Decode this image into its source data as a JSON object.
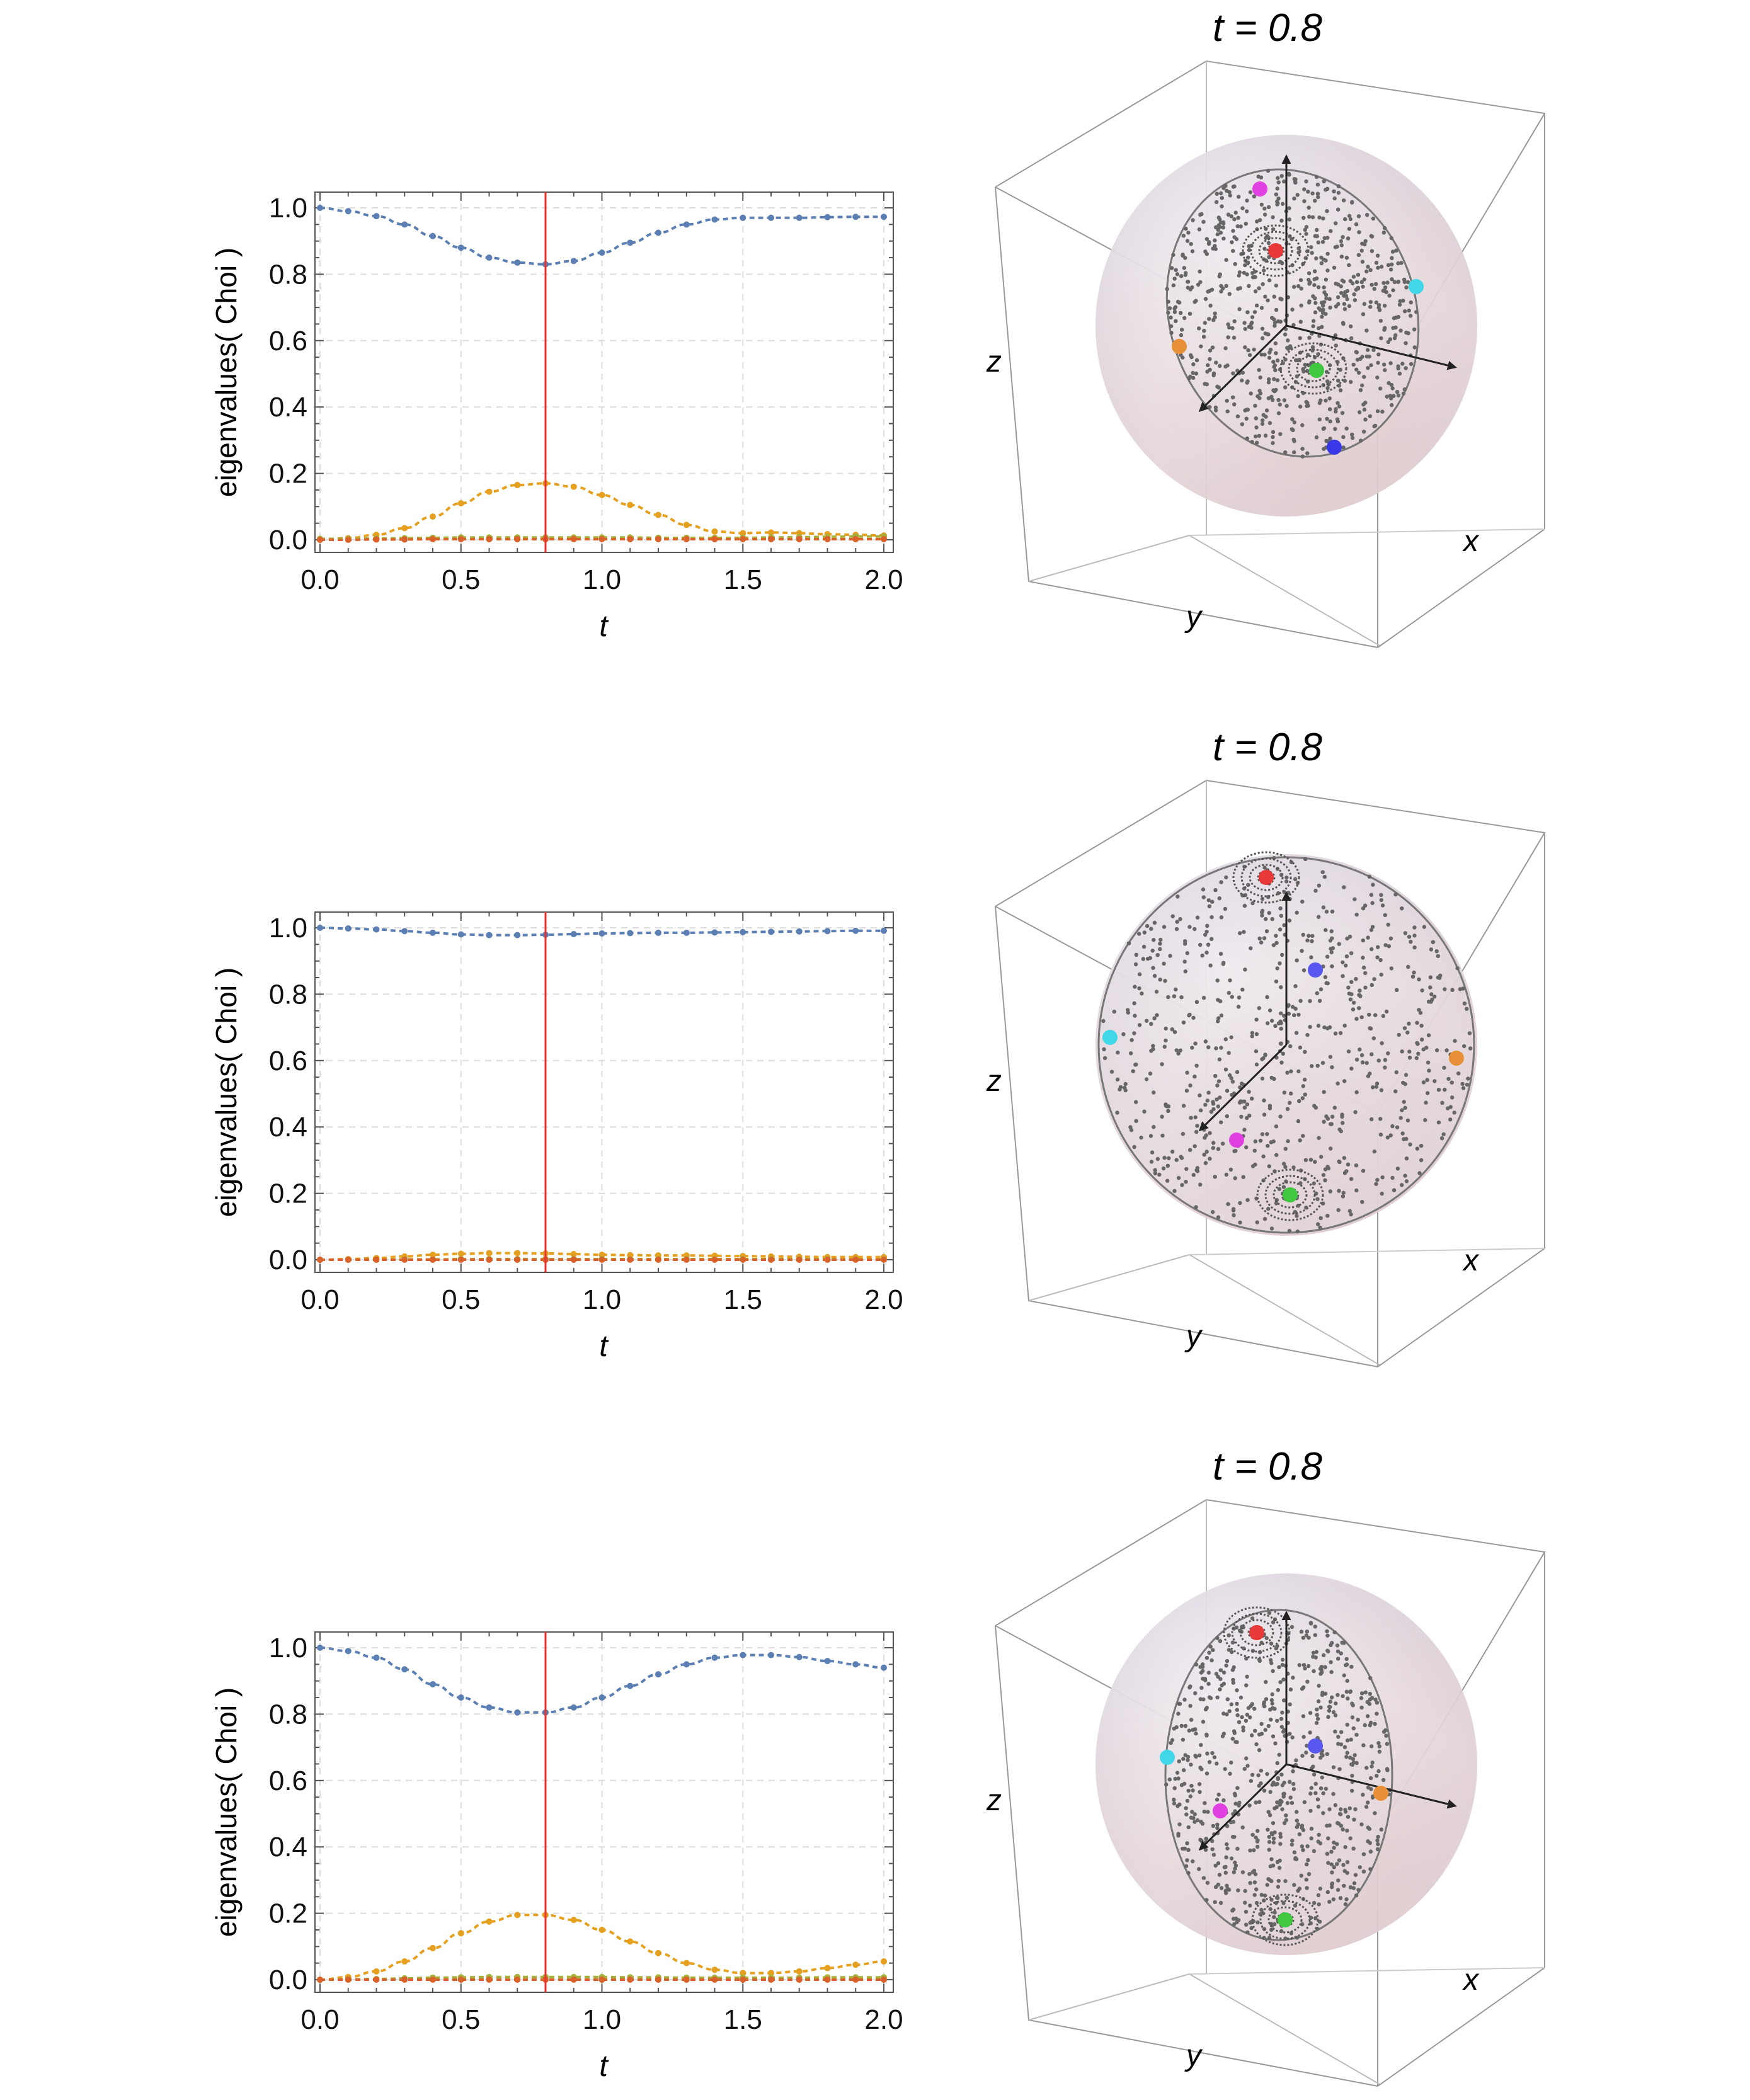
{
  "chart_data": [
    {
      "type": "line",
      "ylabel": "eigenvalues( Choi )",
      "xlabel": "t",
      "xlim": [
        0.0,
        2.0
      ],
      "ylim": [
        0.0,
        1.0
      ],
      "xticks": [
        "0.0",
        "0.5",
        "1.0",
        "1.5",
        "2.0"
      ],
      "yticks": [
        "0.0",
        "0.2",
        "0.4",
        "0.6",
        "0.8",
        "1.0"
      ],
      "marker_t": 0.8,
      "grid": true,
      "x": [
        0.0,
        0.1,
        0.2,
        0.3,
        0.4,
        0.5,
        0.6,
        0.7,
        0.8,
        0.9,
        1.0,
        1.1,
        1.2,
        1.3,
        1.4,
        1.5,
        1.6,
        1.7,
        1.8,
        1.9,
        2.0
      ],
      "series": [
        {
          "color": "#5b7fb3",
          "values": [
            1.0,
            0.99,
            0.975,
            0.95,
            0.915,
            0.88,
            0.85,
            0.835,
            0.83,
            0.84,
            0.865,
            0.895,
            0.925,
            0.95,
            0.965,
            0.97,
            0.97,
            0.97,
            0.972,
            0.973,
            0.973
          ]
        },
        {
          "color": "#e6a020",
          "values": [
            0.0,
            0.005,
            0.015,
            0.035,
            0.07,
            0.11,
            0.145,
            0.165,
            0.17,
            0.16,
            0.135,
            0.105,
            0.075,
            0.045,
            0.025,
            0.02,
            0.022,
            0.02,
            0.017,
            0.015,
            0.013
          ]
        },
        {
          "color": "#a8ae3a",
          "values": [
            0.003,
            0.003,
            0.004,
            0.005,
            0.006,
            0.007,
            0.007,
            0.007,
            0.007,
            0.007,
            0.007,
            0.007,
            0.006,
            0.006,
            0.006,
            0.006,
            0.007,
            0.008,
            0.009,
            0.01,
            0.01
          ]
        },
        {
          "color": "#d9622a",
          "values": [
            0.0,
            0.0,
            0.001,
            0.001,
            0.002,
            0.002,
            0.002,
            0.002,
            0.002,
            0.002,
            0.002,
            0.002,
            0.002,
            0.002,
            0.002,
            0.002,
            0.002,
            0.002,
            0.002,
            0.002,
            0.002
          ]
        }
      ]
    },
    {
      "type": "line",
      "ylabel": "eigenvalues( Choi )",
      "xlabel": "t",
      "xlim": [
        0.0,
        2.0
      ],
      "ylim": [
        0.0,
        1.0
      ],
      "xticks": [
        "0.0",
        "0.5",
        "1.0",
        "1.5",
        "2.0"
      ],
      "yticks": [
        "0.0",
        "0.2",
        "0.4",
        "0.6",
        "0.8",
        "1.0"
      ],
      "marker_t": 0.8,
      "grid": true,
      "x": [
        0.0,
        0.1,
        0.2,
        0.3,
        0.4,
        0.5,
        0.6,
        0.7,
        0.8,
        0.9,
        1.0,
        1.1,
        1.2,
        1.3,
        1.4,
        1.5,
        1.6,
        1.7,
        1.8,
        1.9,
        2.0
      ],
      "series": [
        {
          "color": "#5b7fb3",
          "values": [
            1.0,
            0.998,
            0.995,
            0.99,
            0.985,
            0.98,
            0.978,
            0.978,
            0.979,
            0.981,
            0.983,
            0.984,
            0.985,
            0.985,
            0.986,
            0.987,
            0.988,
            0.989,
            0.99,
            0.991,
            0.991
          ]
        },
        {
          "color": "#e6a020",
          "values": [
            0.0,
            0.002,
            0.005,
            0.01,
            0.015,
            0.018,
            0.02,
            0.02,
            0.019,
            0.017,
            0.015,
            0.014,
            0.013,
            0.013,
            0.012,
            0.011,
            0.01,
            0.009,
            0.008,
            0.008,
            0.008
          ]
        },
        {
          "color": "#a8ae3a",
          "values": [
            0.0,
            0.0,
            0.0,
            0.001,
            0.001,
            0.002,
            0.002,
            0.002,
            0.002,
            0.002,
            0.002,
            0.002,
            0.002,
            0.002,
            0.002,
            0.002,
            0.002,
            0.002,
            0.002,
            0.001,
            0.001
          ]
        },
        {
          "color": "#d9622a",
          "values": [
            0.0,
            0.0,
            0.0,
            0.0,
            0.0,
            0.0,
            0.0,
            0.0,
            0.0,
            0.0,
            0.0,
            0.0,
            0.0,
            0.0,
            0.0,
            0.0,
            0.0,
            0.0,
            0.0,
            0.0,
            0.0
          ]
        }
      ]
    },
    {
      "type": "line",
      "ylabel": "eigenvalues( Choi )",
      "xlabel": "t",
      "xlim": [
        0.0,
        2.0
      ],
      "ylim": [
        0.0,
        1.0
      ],
      "xticks": [
        "0.0",
        "0.5",
        "1.0",
        "1.5",
        "2.0"
      ],
      "yticks": [
        "0.0",
        "0.2",
        "0.4",
        "0.6",
        "0.8",
        "1.0"
      ],
      "marker_t": 0.8,
      "grid": true,
      "x": [
        0.0,
        0.1,
        0.2,
        0.3,
        0.4,
        0.5,
        0.6,
        0.7,
        0.8,
        0.9,
        1.0,
        1.1,
        1.2,
        1.3,
        1.4,
        1.5,
        1.6,
        1.7,
        1.8,
        1.9,
        2.0
      ],
      "series": [
        {
          "color": "#5b7fb3",
          "values": [
            1.0,
            0.99,
            0.97,
            0.935,
            0.89,
            0.85,
            0.82,
            0.805,
            0.805,
            0.82,
            0.85,
            0.885,
            0.92,
            0.95,
            0.97,
            0.978,
            0.978,
            0.972,
            0.96,
            0.95,
            0.94
          ]
        },
        {
          "color": "#e6a020",
          "values": [
            0.0,
            0.008,
            0.025,
            0.055,
            0.095,
            0.14,
            0.175,
            0.195,
            0.195,
            0.18,
            0.15,
            0.115,
            0.08,
            0.05,
            0.03,
            0.02,
            0.02,
            0.025,
            0.035,
            0.045,
            0.055
          ]
        },
        {
          "color": "#a8ae3a",
          "values": [
            0.0,
            0.001,
            0.002,
            0.004,
            0.006,
            0.007,
            0.008,
            0.008,
            0.008,
            0.008,
            0.008,
            0.007,
            0.007,
            0.006,
            0.006,
            0.006,
            0.006,
            0.006,
            0.007,
            0.007,
            0.007
          ]
        },
        {
          "color": "#d9622a",
          "values": [
            0.0,
            0.0,
            0.0,
            0.0,
            0.0,
            0.0,
            0.0,
            0.0,
            0.0,
            0.0,
            0.0,
            0.0,
            0.0,
            0.0,
            0.0,
            0.0,
            0.0,
            0.0,
            0.0,
            0.0,
            0.0
          ]
        }
      ]
    },
    {
      "type": "3d-ellipsoid",
      "title": "t = 0.8",
      "axis_labels": {
        "z": "z",
        "x": "x",
        "y": "y"
      },
      "point_colors": [
        "#e83838",
        "#e040e0",
        "#40d8e8",
        "#e89038",
        "#40c840",
        "#3838e8"
      ]
    },
    {
      "type": "3d-ellipsoid",
      "title": "t = 0.8",
      "axis_labels": {
        "z": "z",
        "x": "x",
        "y": "y"
      },
      "point_colors": [
        "#e83838",
        "#5858f0",
        "#40d8e8",
        "#e89038",
        "#e040e0",
        "#40c840"
      ]
    },
    {
      "type": "3d-ellipsoid",
      "title": "t = 0.8",
      "axis_labels": {
        "z": "z",
        "x": "x",
        "y": "y"
      },
      "point_colors": [
        "#e83838",
        "#40d8e8",
        "#5858f0",
        "#e89038",
        "#e040e0",
        "#40c840"
      ]
    }
  ]
}
